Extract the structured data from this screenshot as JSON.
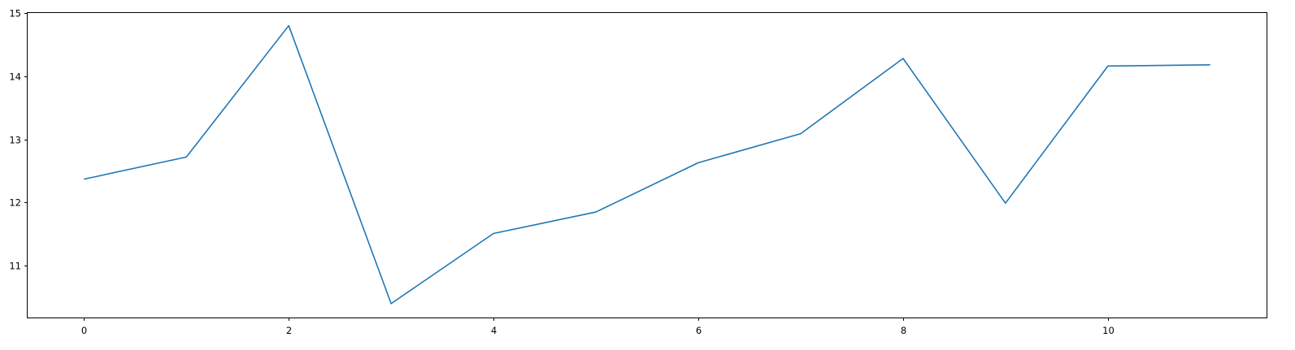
{
  "chart_data": {
    "type": "line",
    "title": "",
    "xlabel": "",
    "ylabel": "",
    "x": [
      0,
      1,
      2,
      3,
      4,
      5,
      6,
      7,
      8,
      9,
      10,
      11
    ],
    "series": [
      {
        "values": [
          12.37,
          12.72,
          14.8,
          10.4,
          11.51,
          11.85,
          12.63,
          13.09,
          14.28,
          11.99,
          14.16,
          14.18
        ],
        "color": "#1f77b4"
      }
    ],
    "xlim": [
      -0.55,
      11.55
    ],
    "ylim": [
      10.18,
      15.0
    ],
    "xticks": [
      0,
      2,
      4,
      6,
      8,
      10
    ],
    "xtick_labels": [
      "0",
      "2",
      "4",
      "6",
      "8",
      "10"
    ],
    "yticks": [
      11,
      12,
      13,
      14,
      15
    ],
    "ytick_labels": [
      "11",
      "12",
      "13",
      "14",
      "15"
    ],
    "grid": false,
    "legend": "none"
  }
}
